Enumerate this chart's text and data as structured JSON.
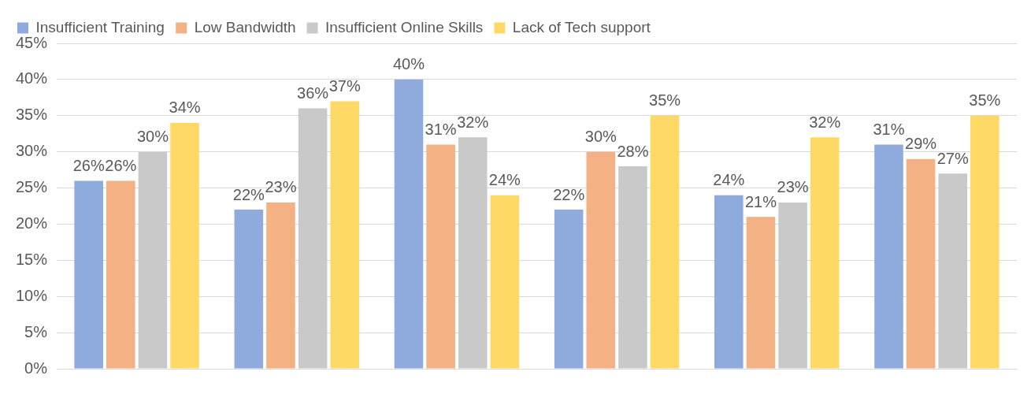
{
  "chart_data": {
    "type": "bar",
    "categories": [
      null,
      null,
      null,
      null,
      null,
      null
    ],
    "series": [
      {
        "name": "Insufficient Training",
        "color": "#8faadc",
        "values": [
          26,
          22,
          40,
          22,
          24,
          31
        ],
        "value_labels": [
          "26%",
          "22%",
          "40%",
          "22%",
          "24%",
          "31%"
        ]
      },
      {
        "name": "Low Bandwidth",
        "color": "#f4b183",
        "values": [
          26,
          23,
          31,
          30,
          21,
          29
        ],
        "value_labels": [
          "26%",
          "23%",
          "31%",
          "30%",
          "21%",
          "29%"
        ]
      },
      {
        "name": "Insufficient Online Skills",
        "color": "#c9c9c9",
        "values": [
          30,
          36,
          32,
          28,
          23,
          27
        ],
        "value_labels": [
          "30%",
          "36%",
          "32%",
          "28%",
          "23%",
          "27%"
        ]
      },
      {
        "name": "Lack of Tech support",
        "color": "#ffd966",
        "values": [
          34,
          37,
          24,
          35,
          32,
          35
        ],
        "value_labels": [
          "34%",
          "37%",
          "24%",
          "35%",
          "32%",
          "35%"
        ]
      }
    ],
    "ylim": [
      0,
      45
    ],
    "yticks": [
      {
        "value": 0,
        "label": "0%"
      },
      {
        "value": 5,
        "label": "5%"
      },
      {
        "value": 10,
        "label": "10%"
      },
      {
        "value": 15,
        "label": "15%"
      },
      {
        "value": 20,
        "label": "20%"
      },
      {
        "value": 25,
        "label": "25%"
      },
      {
        "value": 30,
        "label": "30%"
      },
      {
        "value": 35,
        "label": "35%"
      },
      {
        "value": 40,
        "label": "40%"
      },
      {
        "value": 45,
        "label": "45%"
      }
    ],
    "grid": "y",
    "legend": "top left"
  }
}
